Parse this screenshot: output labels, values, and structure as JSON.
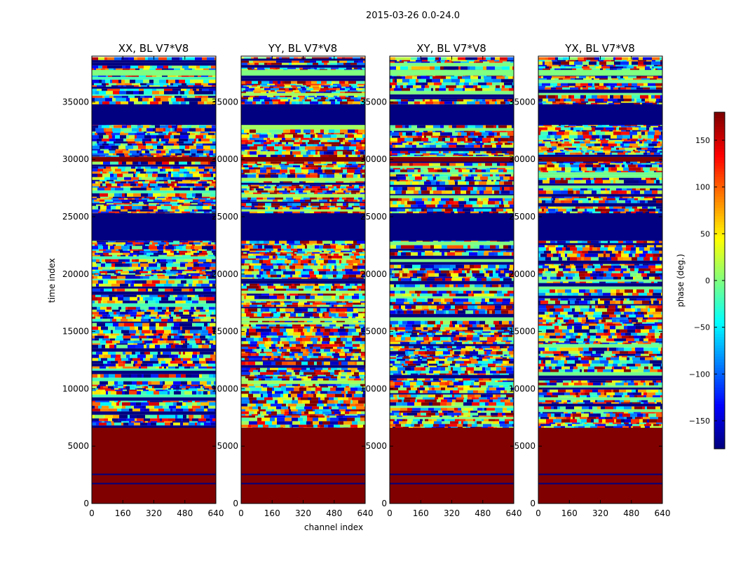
{
  "figure": {
    "suptitle": "2015-03-26 0.0-24.0",
    "xlabel": "channel index",
    "ylabel": "time index"
  },
  "chart_data": {
    "type": "heatmap",
    "x": {
      "label": "channel index",
      "range": [
        0,
        640
      ],
      "ticks": [
        0,
        160,
        320,
        480,
        640
      ]
    },
    "y": {
      "label": "time index",
      "range": [
        0,
        39000
      ],
      "ticks": [
        0,
        5000,
        10000,
        15000,
        20000,
        25000,
        30000,
        35000
      ]
    },
    "colorbar": {
      "label": "phase (deg.)",
      "range": [
        -180,
        180
      ],
      "ticks": [
        -150,
        -100,
        -50,
        0,
        50,
        100,
        150
      ],
      "tick_labels": [
        "−150",
        "−100",
        "−50",
        "0",
        "50",
        "100",
        "150"
      ],
      "colors": [
        "#00007f",
        "#0000ff",
        "#007fff",
        "#00ffff",
        "#7fff7f",
        "#ffff00",
        "#ff7f00",
        "#ff0000",
        "#7f0000"
      ]
    },
    "panels": [
      {
        "title": "XX, BL V7*V8",
        "bias": 0.4
      },
      {
        "title": "YY, BL V7*V8",
        "bias": 0.56
      },
      {
        "title": "XY, BL V7*V8",
        "bias": 0.5
      },
      {
        "title": "YX, BL V7*V8",
        "bias": 0.48
      }
    ],
    "bands": [
      {
        "y0": 0,
        "y1": 6600,
        "kind": "saturated",
        "value": 180
      },
      {
        "y0": 6600,
        "y1": 38900,
        "kind": "noisy"
      },
      {
        "y0": 22900,
        "y1": 25300,
        "kind": "flagged",
        "value": -180
      },
      {
        "y0": 29800,
        "y1": 30200,
        "kind": "saturated",
        "value": 180
      },
      {
        "y0": 33000,
        "y1": 34800,
        "kind": "flagged",
        "value": -180
      },
      {
        "y0": 37300,
        "y1": 37800,
        "kind": "flat",
        "value": 0
      }
    ]
  }
}
